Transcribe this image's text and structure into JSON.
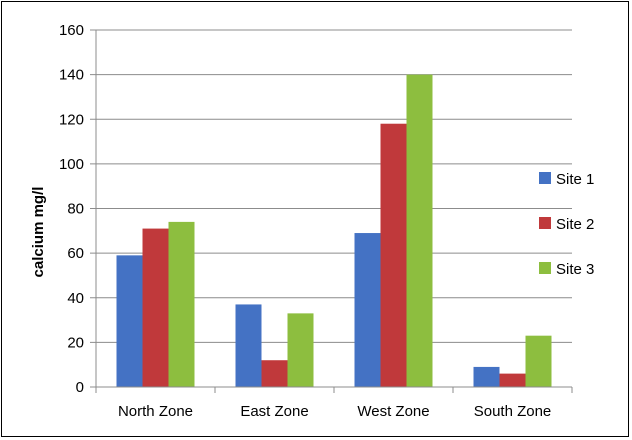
{
  "chart_data": {
    "type": "bar",
    "categories": [
      "North Zone",
      "East Zone",
      "West Zone",
      "South Zone"
    ],
    "series": [
      {
        "name": "Site 1",
        "values": [
          59,
          37,
          69,
          9
        ],
        "color": "#4472C4"
      },
      {
        "name": "Site 2",
        "values": [
          71,
          12,
          118,
          6
        ],
        "color": "#C0393B"
      },
      {
        "name": "Site 3",
        "values": [
          74,
          33,
          140,
          23
        ],
        "color": "#8DBE3F"
      }
    ],
    "title": "",
    "xlabel": "",
    "ylabel": "calcium  mg/l",
    "ylim": [
      0,
      160
    ],
    "yticks": [
      0,
      20,
      40,
      60,
      80,
      100,
      120,
      140,
      160
    ],
    "grid": true,
    "legend": "right"
  }
}
